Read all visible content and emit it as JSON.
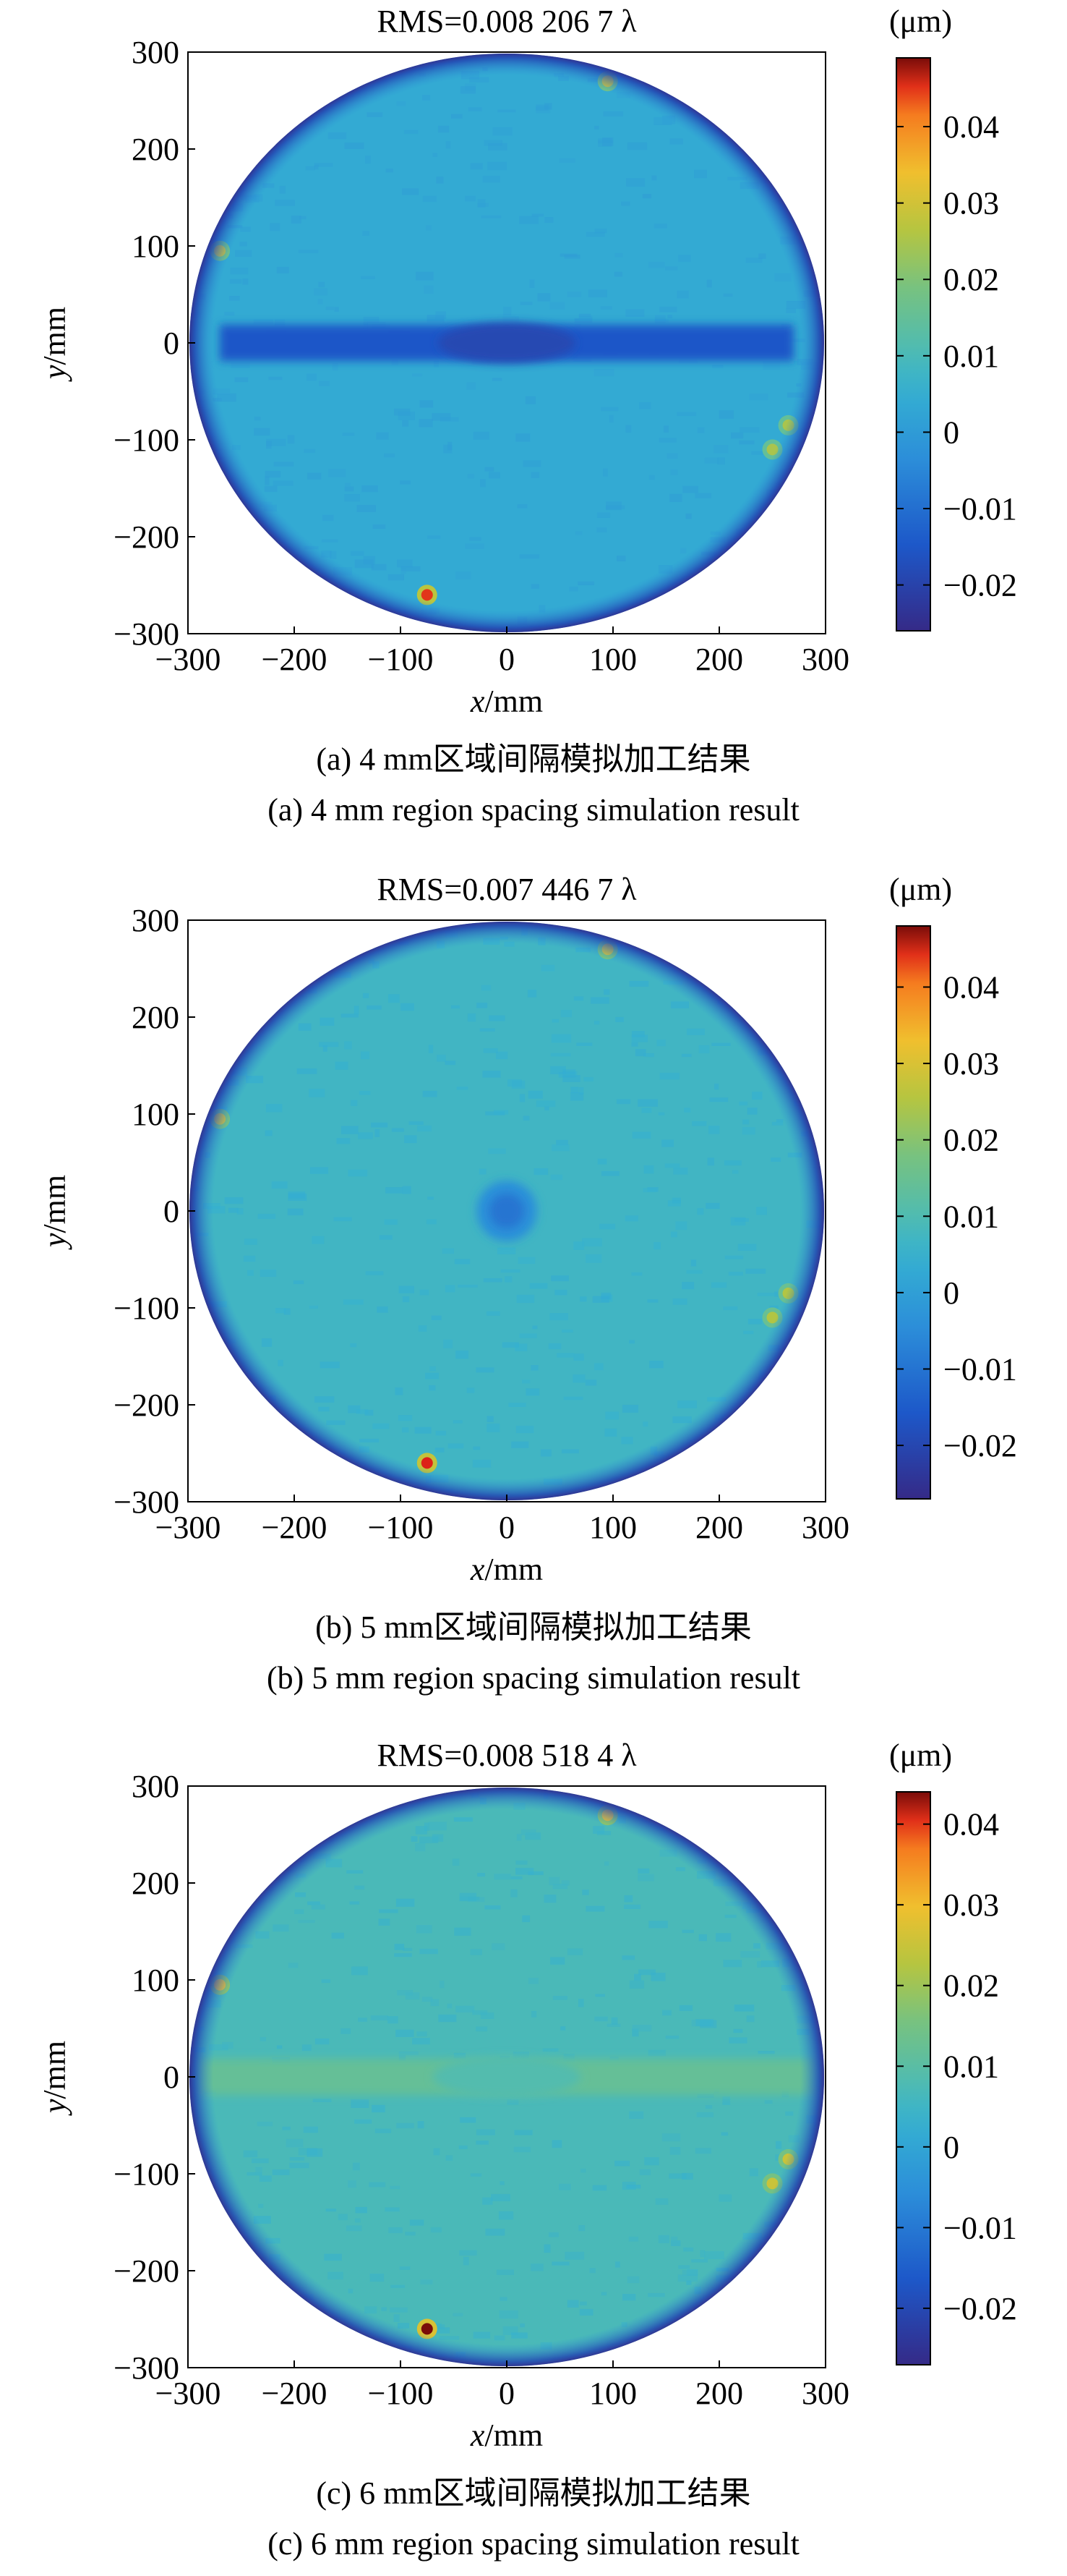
{
  "panels": [
    {
      "id": "a",
      "title": "RMS=0.008 206 7 λ",
      "unit": "(μm)",
      "caption_cn": "(a) 4 mm区域间隔模拟加工结果",
      "caption_en": "(a) 4 mm region spacing simulation result"
    },
    {
      "id": "b",
      "title": "RMS=0.007 446 7 λ",
      "unit": "(μm)",
      "caption_cn": "(b) 5 mm区域间隔模拟加工结果",
      "caption_en": "(b) 5 mm region spacing simulation result"
    },
    {
      "id": "c",
      "title": "RMS=0.008 518 4 λ",
      "unit": "(μm)",
      "caption_cn": "(c) 6 mm区域间隔模拟加工结果",
      "caption_en": "(c) 6 mm region spacing simulation result"
    }
  ],
  "chart_data": [
    {
      "type": "heatmap",
      "title": "RMS=0.008 206 7 λ",
      "xlabel": "x/mm",
      "ylabel": "y/mm",
      "xlim": [
        -300,
        300
      ],
      "ylim": [
        -300,
        300
      ],
      "xticks": [
        -300,
        -200,
        -100,
        0,
        100,
        200,
        300
      ],
      "yticks": [
        300,
        200,
        100,
        0,
        -100,
        -200,
        -300
      ],
      "colorbar": {
        "unit": "(μm)",
        "range": [
          -0.026,
          0.049
        ],
        "ticks": [
          0.04,
          0.03,
          0.02,
          0.01,
          0,
          -0.01,
          -0.02
        ]
      },
      "features": [
        {
          "type": "background",
          "value": 0.004
        },
        {
          "type": "band",
          "y": 0,
          "x_range": [
            -270,
            270
          ],
          "value": -0.015
        },
        {
          "type": "spot",
          "x": -270,
          "y": 95,
          "value": 0.03
        },
        {
          "type": "spot",
          "x": 95,
          "y": 270,
          "value": 0.03
        },
        {
          "type": "spot",
          "x": -75,
          "y": -260,
          "value": 0.045
        },
        {
          "type": "spot",
          "x": 265,
          "y": -85,
          "value": 0.025
        },
        {
          "type": "spot",
          "x": 250,
          "y": -110,
          "value": 0.025
        }
      ]
    },
    {
      "type": "heatmap",
      "title": "RMS=0.007 446 7 λ",
      "xlabel": "x/mm",
      "ylabel": "y/mm",
      "xlim": [
        -300,
        300
      ],
      "ylim": [
        -300,
        300
      ],
      "xticks": [
        -300,
        -200,
        -100,
        0,
        100,
        200,
        300
      ],
      "yticks": [
        300,
        200,
        100,
        0,
        -100,
        -200,
        -300
      ],
      "colorbar": {
        "unit": "(μm)",
        "range": [
          -0.027,
          0.048
        ],
        "ticks": [
          0.04,
          0.03,
          0.02,
          0.01,
          0,
          -0.01,
          -0.02
        ]
      },
      "features": [
        {
          "type": "background",
          "value": 0.007
        },
        {
          "type": "center_dip",
          "x": 0,
          "y": 0,
          "value": -0.01
        },
        {
          "type": "spot",
          "x": -270,
          "y": 95,
          "value": 0.03
        },
        {
          "type": "spot",
          "x": 95,
          "y": 270,
          "value": 0.03
        },
        {
          "type": "spot",
          "x": -75,
          "y": -260,
          "value": 0.045
        },
        {
          "type": "spot",
          "x": 265,
          "y": -85,
          "value": 0.025
        },
        {
          "type": "spot",
          "x": 250,
          "y": -110,
          "value": 0.025
        }
      ]
    },
    {
      "type": "heatmap",
      "title": "RMS=0.008 518 4 λ",
      "xlabel": "x/mm",
      "ylabel": "y/mm",
      "xlim": [
        -300,
        300
      ],
      "ylim": [
        -300,
        300
      ],
      "xticks": [
        -300,
        -200,
        -100,
        0,
        100,
        200,
        300
      ],
      "yticks": [
        300,
        200,
        100,
        0,
        -100,
        -200,
        -300
      ],
      "colorbar": {
        "unit": "(μm)",
        "range": [
          -0.027,
          0.044
        ],
        "ticks": [
          0.04,
          0.03,
          0.02,
          0.01,
          0,
          -0.01,
          -0.02
        ]
      },
      "features": [
        {
          "type": "background",
          "value": 0.007
        },
        {
          "type": "band",
          "y": 0,
          "x_range": [
            -290,
            290
          ],
          "value": 0.012
        },
        {
          "type": "spot",
          "x": -270,
          "y": 95,
          "value": 0.03
        },
        {
          "type": "spot",
          "x": 95,
          "y": 270,
          "value": 0.03
        },
        {
          "type": "spot",
          "x": -75,
          "y": -260,
          "value": 0.045
        },
        {
          "type": "spot",
          "x": 265,
          "y": -85,
          "value": 0.025
        },
        {
          "type": "spot",
          "x": 250,
          "y": -110,
          "value": 0.025
        }
      ]
    }
  ]
}
